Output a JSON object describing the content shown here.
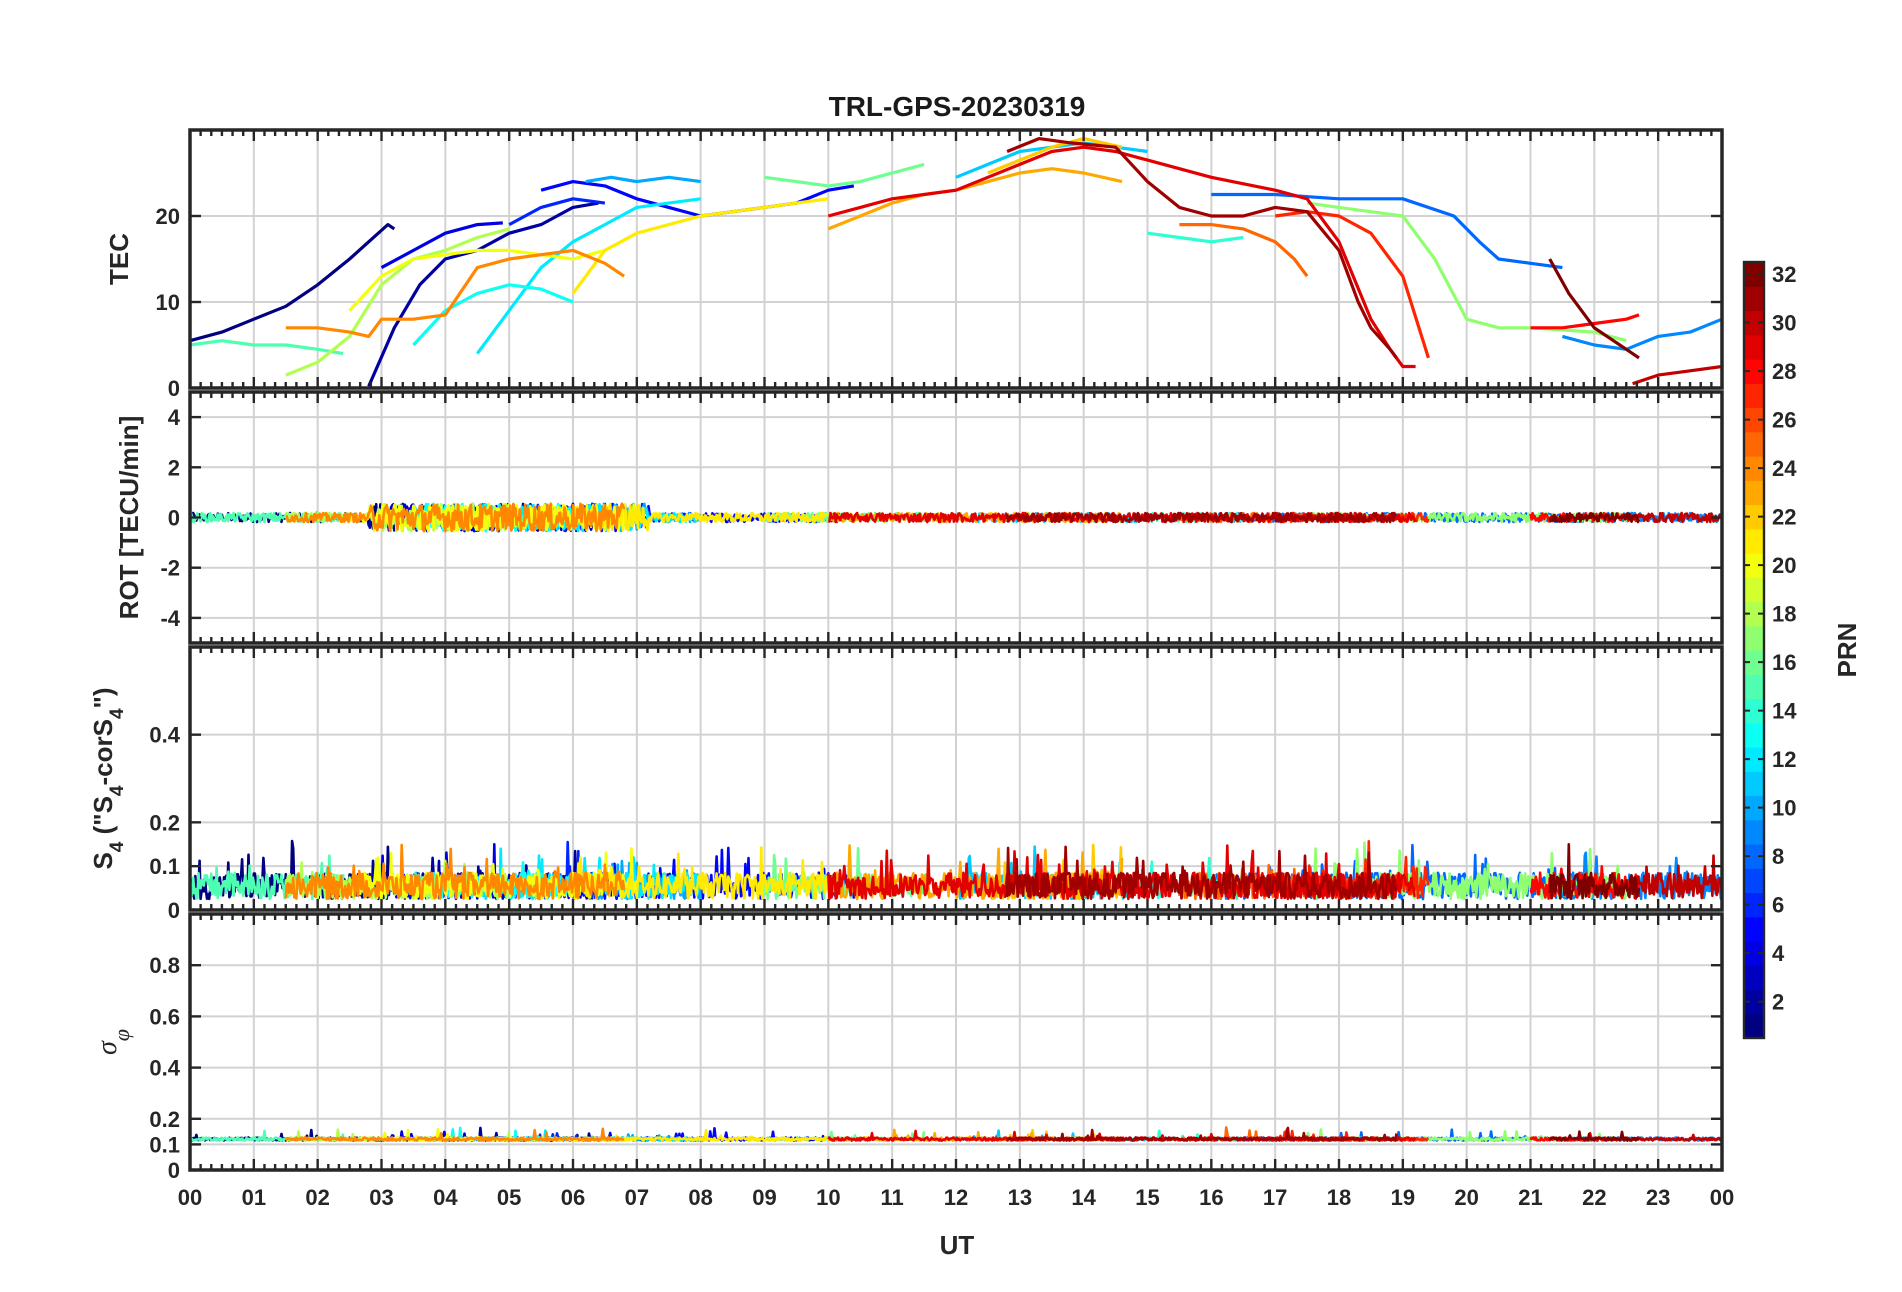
{
  "chart_data": {
    "type": "line",
    "title": "TRL-GPS-20230319",
    "xlabel": "UT",
    "x_ticks": [
      "00",
      "01",
      "02",
      "03",
      "04",
      "05",
      "06",
      "07",
      "08",
      "09",
      "10",
      "11",
      "12",
      "13",
      "14",
      "15",
      "16",
      "17",
      "18",
      "19",
      "20",
      "21",
      "22",
      "23",
      "00"
    ],
    "xlim": [
      0,
      24
    ],
    "grid": true,
    "colorbar": {
      "label": "PRN",
      "range": [
        1,
        32
      ],
      "ticks": [
        "2",
        "4",
        "6",
        "8",
        "10",
        "12",
        "14",
        "16",
        "18",
        "20",
        "22",
        "24",
        "26",
        "28",
        "30",
        "32"
      ],
      "colormap": "jet"
    },
    "panels": [
      {
        "id": "tec",
        "ylabel": "TEC",
        "ylim": [
          0,
          30
        ],
        "y_ticks": [
          0,
          10,
          20
        ],
        "series": [
          {
            "prn": 1,
            "x": [
              0.0,
              0.5,
              1.0,
              1.5,
              2.0,
              2.5,
              2.8,
              3.1,
              3.2
            ],
            "y": [
              5.5,
              6.5,
              8.0,
              9.5,
              12.0,
              15.0,
              17.0,
              19.0,
              18.5
            ]
          },
          {
            "prn": 2,
            "x": [
              2.8,
              3.2,
              3.6,
              4.0,
              4.5,
              5.0,
              5.5,
              6.0,
              6.4
            ],
            "y": [
              0.2,
              7.0,
              12.0,
              15.0,
              16.0,
              18.0,
              19.0,
              21.0,
              21.5
            ]
          },
          {
            "prn": 4,
            "x": [
              3.0,
              3.5,
              4.0,
              4.5,
              4.9
            ],
            "y": [
              14.0,
              16.0,
              18.0,
              19.0,
              19.2
            ]
          },
          {
            "prn": 5,
            "x": [
              5.5,
              6.0,
              6.5,
              7.0,
              7.5,
              8.0,
              8.5,
              9.0,
              9.5,
              10.0,
              10.4
            ],
            "y": [
              23.0,
              24.0,
              23.5,
              22.0,
              21.0,
              20.0,
              20.5,
              21.0,
              21.5,
              23.0,
              23.5
            ]
          },
          {
            "prn": 6,
            "x": [
              5.0,
              5.5,
              6.0,
              6.5
            ],
            "y": [
              19.0,
              21.0,
              22.0,
              21.5
            ]
          },
          {
            "prn": 8,
            "x": [
              16.0,
              17.0,
              18.0,
              19.0,
              19.8,
              20.2,
              20.5,
              21.0,
              21.5
            ],
            "y": [
              22.5,
              22.5,
              22.0,
              22.0,
              20.0,
              17.0,
              15.0,
              14.5,
              14.0
            ]
          },
          {
            "prn": 9,
            "x": [
              21.5,
              22.0,
              22.5,
              23.0,
              23.5,
              24.0
            ],
            "y": [
              6.0,
              5.0,
              4.5,
              6.0,
              6.5,
              8.0
            ]
          },
          {
            "prn": 10,
            "x": [
              6.2,
              6.6,
              7.0,
              7.5,
              8.0
            ],
            "y": [
              24.0,
              24.5,
              24.0,
              24.5,
              24.0
            ]
          },
          {
            "prn": 11,
            "x": [
              12.0,
              12.5,
              13.0,
              13.5,
              14.0,
              14.5,
              15.0
            ],
            "y": [
              24.5,
              26.0,
              27.5,
              28.0,
              28.5,
              28.0,
              27.5
            ]
          },
          {
            "prn": 12,
            "x": [
              4.5,
              5.0,
              5.5,
              6.0,
              6.5,
              7.0,
              7.5,
              8.0
            ],
            "y": [
              4.0,
              9.0,
              14.0,
              17.0,
              19.0,
              21.0,
              21.5,
              22.0
            ]
          },
          {
            "prn": 13,
            "x": [
              3.5,
              4.0,
              4.5,
              5.0,
              5.5,
              6.0
            ],
            "y": [
              5.0,
              9.0,
              11.0,
              12.0,
              11.5,
              10.0
            ]
          },
          {
            "prn": 14,
            "x": [
              15.0,
              15.5,
              16.0,
              16.5
            ],
            "y": [
              18.0,
              17.5,
              17.0,
              17.5
            ]
          },
          {
            "prn": 15,
            "x": [
              0.0,
              0.5,
              1.0,
              1.5,
              2.0,
              2.4
            ],
            "y": [
              5.0,
              5.5,
              5.0,
              5.0,
              4.5,
              4.0
            ]
          },
          {
            "prn": 16,
            "x": [
              9.0,
              9.5,
              10.0,
              10.5,
              11.0,
              11.5
            ],
            "y": [
              24.5,
              24.0,
              23.5,
              24.0,
              25.0,
              26.0
            ]
          },
          {
            "prn": 17,
            "x": [
              17.5,
              18.0,
              18.5,
              19.0,
              19.5,
              20.0,
              20.5,
              21.0,
              22.0,
              22.5
            ],
            "y": [
              21.5,
              21.0,
              20.5,
              20.0,
              15.0,
              8.0,
              7.0,
              7.0,
              6.5,
              5.5
            ]
          },
          {
            "prn": 18,
            "x": [
              1.5,
              2.0,
              2.5,
              3.0,
              3.5,
              4.0,
              4.5,
              5.0
            ],
            "y": [
              1.5,
              3.0,
              6.0,
              12.0,
              15.0,
              16.0,
              17.5,
              18.5
            ]
          },
          {
            "prn": 20,
            "x": [
              2.5,
              3.0,
              3.5,
              4.0,
              4.5,
              5.0,
              5.5,
              6.0,
              6.5,
              7.0
            ],
            "y": [
              9.0,
              13.0,
              15.0,
              15.5,
              16.0,
              16.0,
              15.5,
              15.0,
              16.0,
              18.0
            ]
          },
          {
            "prn": 21,
            "x": [
              6.0,
              6.5,
              7.0,
              7.5,
              8.0,
              8.5,
              9.0,
              9.5,
              10.0
            ],
            "y": [
              11.0,
              16.0,
              18.0,
              19.0,
              20.0,
              20.5,
              21.0,
              21.5,
              22.0
            ]
          },
          {
            "prn": 22,
            "x": [
              12.5,
              13.0,
              13.5,
              14.0,
              14.6
            ],
            "y": [
              25.0,
              26.5,
              28.0,
              29.0,
              28.0
            ]
          },
          {
            "prn": 23,
            "x": [
              10.0,
              10.5,
              11.0,
              11.5,
              12.0,
              12.5,
              13.0,
              13.5,
              14.0,
              14.6
            ],
            "y": [
              18.5,
              20.0,
              21.5,
              22.5,
              23.0,
              24.0,
              25.0,
              25.5,
              25.0,
              24.0
            ]
          },
          {
            "prn": 24,
            "x": [
              1.5,
              2.0,
              2.5,
              2.8,
              3.0,
              3.5,
              4.0,
              4.5,
              5.0,
              5.5,
              6.0,
              6.5,
              6.8
            ],
            "y": [
              7.0,
              7.0,
              6.5,
              6.0,
              8.0,
              8.0,
              8.5,
              14.0,
              15.0,
              15.5,
              16.0,
              14.5,
              13.0
            ]
          },
          {
            "prn": 25,
            "x": [
              15.5,
              16.0,
              16.5,
              17.0,
              17.3,
              17.5
            ],
            "y": [
              19.0,
              19.0,
              18.5,
              17.0,
              15.0,
              13.0
            ]
          },
          {
            "prn": 27,
            "x": [
              17.0,
              17.5,
              18.0,
              18.5,
              19.0,
              19.4
            ],
            "y": [
              20.0,
              20.5,
              20.0,
              18.0,
              13.0,
              3.5
            ]
          },
          {
            "prn": 28,
            "x": [
              21.0,
              21.5,
              22.0,
              22.5,
              22.7
            ],
            "y": [
              7.0,
              7.0,
              7.5,
              8.0,
              8.5
            ]
          },
          {
            "prn": 29,
            "x": [
              10.0,
              10.5,
              11.0,
              11.5,
              12.0,
              12.5,
              13.0,
              13.5,
              14.0,
              14.5,
              15.0,
              16.0,
              17.0,
              17.5,
              18.0,
              18.5,
              18.8,
              19.0,
              19.2
            ],
            "y": [
              20.0,
              21.0,
              22.0,
              22.5,
              23.0,
              24.5,
              26.0,
              27.5,
              28.0,
              27.5,
              26.5,
              24.5,
              23.0,
              22.0,
              17.0,
              8.0,
              4.5,
              2.5,
              2.5
            ]
          },
          {
            "prn": 30,
            "x": [
              22.6,
              23.0,
              23.5,
              24.0
            ],
            "y": [
              0.5,
              1.5,
              2.0,
              2.5
            ]
          },
          {
            "prn": 31,
            "x": [
              12.8,
              13.3,
              13.8,
              14.5,
              15.0,
              15.5,
              16.0,
              16.5,
              17.0,
              17.5,
              18.0,
              18.3,
              18.5,
              18.8,
              18.9
            ],
            "y": [
              27.5,
              29.0,
              28.5,
              28.0,
              24.0,
              21.0,
              20.0,
              20.0,
              21.0,
              20.5,
              16.0,
              10.0,
              7.0,
              4.5,
              3.5
            ]
          },
          {
            "prn": 32,
            "x": [
              21.3,
              21.6,
              22.0,
              22.5,
              22.7
            ],
            "y": [
              15.0,
              11.0,
              7.0,
              4.5,
              3.5
            ]
          }
        ]
      },
      {
        "id": "rot",
        "ylabel": "ROT [TECU/min]",
        "ylim": [
          -5,
          5
        ],
        "y_ticks": [
          -4,
          -2,
          0,
          2,
          4
        ]
      },
      {
        "id": "s4",
        "ylabel": "S4 (\"S4-corS4\")",
        "ylabel_parts": [
          "S",
          "4",
          " (\"S",
          "4",
          "-corS",
          "4",
          "\")"
        ],
        "ylim": [
          0,
          0.6
        ],
        "y_ticks": [
          0,
          0.1,
          0.2,
          0.4
        ]
      },
      {
        "id": "sigphi",
        "ylabel": "σφ",
        "ylabel_parts": [
          "σ",
          "φ"
        ],
        "ylim": [
          0,
          1
        ],
        "y_ticks": [
          0,
          0.1,
          0.2,
          0.4,
          0.6,
          0.8
        ]
      }
    ]
  }
}
